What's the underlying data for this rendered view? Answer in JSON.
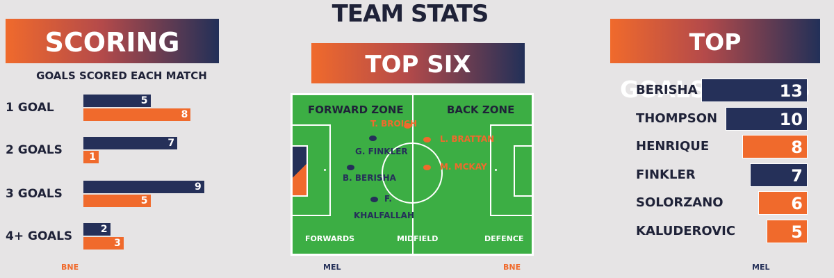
{
  "main_title": "TEAM STATS",
  "scoring": {
    "banner": "SCORING",
    "subtitle": "GOALS SCORED EACH MATCH"
  },
  "top_six": {
    "banner": "TOP SIX PLAYERS",
    "forward_zone": "FORWARD ZONE",
    "back_zone": "BACK ZONE",
    "forwards_label": "FORWARDS",
    "midfield_label": "MIDFIELD",
    "defence_label": "DEFENCE",
    "players": [
      {
        "name": "T. BROICH",
        "team": "BNE"
      },
      {
        "name": "G. FINKLER",
        "team": "MEL"
      },
      {
        "name": "B. BERISHA",
        "team": "MEL"
      },
      {
        "name": "F.",
        "name2": "KHALFALLAH",
        "team": "MEL"
      },
      {
        "name": "L. BRATTAN",
        "team": "BNE"
      },
      {
        "name": "M. MCKAY",
        "team": "BNE"
      }
    ]
  },
  "top_scorers": {
    "banner": "TOP GOALSCORERS"
  },
  "footer": {
    "left_bne": "BNE",
    "center_mel": "MEL",
    "center_bne": "BNE",
    "right_mel": "MEL"
  },
  "colors": {
    "MEL": "#253059",
    "BNE": "#f06a2c",
    "pitch": "#3cae44",
    "background": "#e6e4e5"
  },
  "chart_data": [
    {
      "type": "bar",
      "orientation": "horizontal",
      "categories": [
        "1 GOAL",
        "2 GOALS",
        "3 GOALS",
        "4+ GOALS"
      ],
      "series": [
        {
          "name": "MEL",
          "values": [
            5,
            7,
            9,
            2
          ]
        },
        {
          "name": "BNE",
          "values": [
            8,
            1,
            5,
            3
          ]
        }
      ],
      "title": "SCORING",
      "subtitle": "GOALS SCORED EACH MATCH",
      "legend": [
        "BNE",
        "MEL"
      ]
    },
    {
      "type": "bar",
      "orientation": "horizontal",
      "categories": [
        "BERISHA",
        "THOMPSON",
        "HENRIQUE",
        "FINKLER",
        "SOLORZANO",
        "KALUDEROVIC"
      ],
      "values": [
        13,
        10,
        8,
        7,
        6,
        5
      ],
      "teams": [
        "MEL",
        "MEL",
        "BNE",
        "MEL",
        "BNE",
        "BNE"
      ],
      "title": "TOP GOALSCORERS"
    }
  ]
}
